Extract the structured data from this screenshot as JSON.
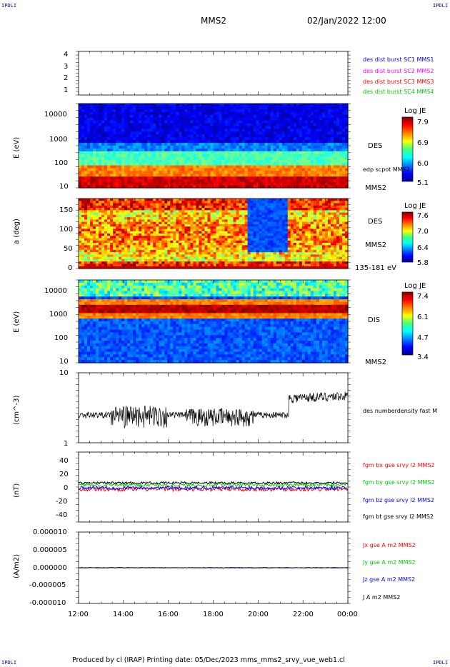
{
  "header": {
    "corner_left": "IPDLI",
    "corner_right": "IPDLI",
    "spacecraft": "MMS2",
    "date": "02/Jan/2022 12:00"
  },
  "footer": {
    "credit": "Produced by cl (IRAP)   Printing date: 05/Dec/2023   mms_mms2_srvy_vue_web1.cl",
    "corner_left": "IPDLI",
    "corner_right": "IPDLI"
  },
  "x_axis": {
    "ticks": [
      "12:00",
      "14:00",
      "16:00",
      "18:00",
      "20:00",
      "22:00",
      "00:00"
    ]
  },
  "chart_data": [
    {
      "type": "scatter",
      "panel": "spacecraft-index",
      "yticks": [
        "4",
        "3",
        "2",
        "1"
      ],
      "legend": [
        {
          "label": "des dist burst SC1 MMS1",
          "color": "#0000ff"
        },
        {
          "label": "des dist burst SC2 MMS2",
          "color": "#ff00ff"
        },
        {
          "label": "des dist burst SC3 MMS3",
          "color": "#ff0000"
        },
        {
          "label": "des dist burst SC4 MMS4",
          "color": "#00cc00"
        }
      ]
    },
    {
      "type": "heatmap",
      "panel": "des-energy",
      "ylabel": "E (eV)",
      "yticks": [
        "10000",
        "1000",
        "100",
        "10"
      ],
      "ylim": [
        10,
        30000
      ],
      "yscale": "log",
      "side_label": "DES",
      "side_note": "edp scpot MMS2",
      "bottom_label": "MMS2",
      "colorbar": {
        "title": "Log JE",
        "ticks": [
          "7.9",
          "6.9",
          "6.0",
          "5.1"
        ]
      }
    },
    {
      "type": "heatmap",
      "panel": "des-pitch",
      "ylabel": "a (deg)",
      "yticks": [
        "150",
        "100",
        "50",
        "0"
      ],
      "ylim": [
        0,
        180
      ],
      "side_label": "DES",
      "bottom_label": "MMS2",
      "energy_range": "135-181 eV",
      "colorbar": {
        "title": "Log JE",
        "ticks": [
          "7.6",
          "7.0",
          "6.4",
          "5.8"
        ]
      }
    },
    {
      "type": "heatmap",
      "panel": "dis-energy",
      "ylabel": "E (eV)",
      "yticks": [
        "10000",
        "1000",
        "100",
        "10"
      ],
      "ylim": [
        10,
        30000
      ],
      "yscale": "log",
      "side_label": "DIS",
      "bottom_label": "MMS2",
      "colorbar": {
        "title": "Log JE",
        "ticks": [
          "7.4",
          "6.1",
          "4.7",
          "3.4"
        ]
      }
    },
    {
      "type": "line",
      "panel": "density",
      "ylabel": "(cm^-3)",
      "yticks": [
        "10",
        "1"
      ],
      "ylim": [
        1,
        10
      ],
      "yscale": "log",
      "series": [
        {
          "name": "des numberdensity fast M",
          "color": "#000000"
        }
      ]
    },
    {
      "type": "line",
      "panel": "magnetic-field",
      "ylabel": "(nT)",
      "yticks": [
        "40",
        "20",
        "0",
        "-20",
        "-40"
      ],
      "ylim": [
        -50,
        50
      ],
      "series": [
        {
          "name": "fgm bx gse srvy l2 MMS2",
          "color": "#ff0000"
        },
        {
          "name": "fgm by gse srvy l2 MMS2",
          "color": "#00cc00"
        },
        {
          "name": "fgm bz gse srvy l2 MMS2",
          "color": "#0000ff"
        },
        {
          "name": "fgm bt gse srvy l2 MMS2",
          "color": "#000000"
        }
      ]
    },
    {
      "type": "line",
      "panel": "current-density",
      "ylabel": "(A/m2)",
      "yticks": [
        "0.000010",
        "0.000005",
        "0.000000",
        "-0.000005",
        "-0.000010"
      ],
      "ylim": [
        -1e-05,
        1e-05
      ],
      "series": [
        {
          "name": "Jx gse A m2 MMS2",
          "color": "#ff0000"
        },
        {
          "name": "Jy gse A m2 MMS2",
          "color": "#00cc00"
        },
        {
          "name": "Jz gse A m2 MMS2",
          "color": "#0000ff"
        },
        {
          "name": "J A m2 MMS2",
          "color": "#000000"
        }
      ]
    }
  ]
}
